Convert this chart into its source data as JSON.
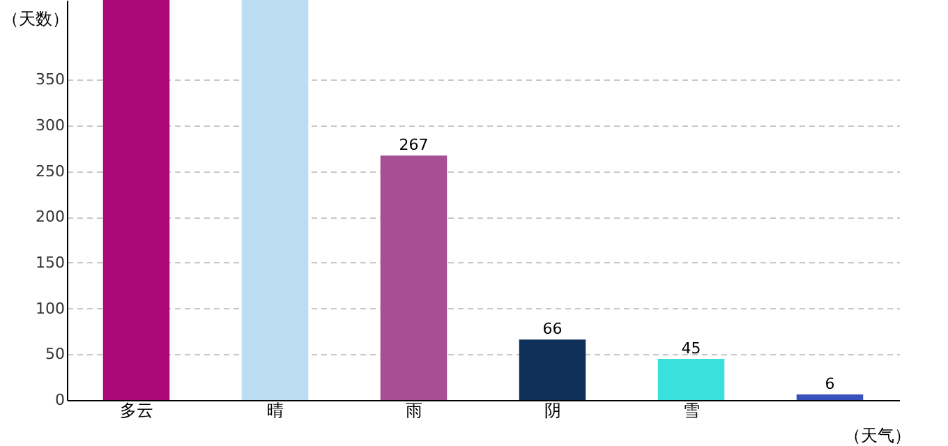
{
  "chart_data": {
    "type": "bar",
    "xlabel": "（天气）",
    "ylabel": "（天数）",
    "categories": [
      "多云",
      "晴",
      "雨",
      "阴",
      "雪",
      null
    ],
    "values": [
      437,
      437,
      267,
      66,
      45,
      6
    ],
    "value_labels": [
      null,
      null,
      "267",
      "66",
      "45",
      "6"
    ],
    "colors": [
      "#aa0977",
      "#bcdcf4",
      "#a84e92",
      "#0f3059",
      "#3ae0dc",
      "#3a52c0"
    ],
    "ylim": [
      0,
      437
    ],
    "yticks": [
      0,
      50,
      100,
      150,
      200,
      250,
      300,
      350
    ],
    "grid": "y"
  }
}
